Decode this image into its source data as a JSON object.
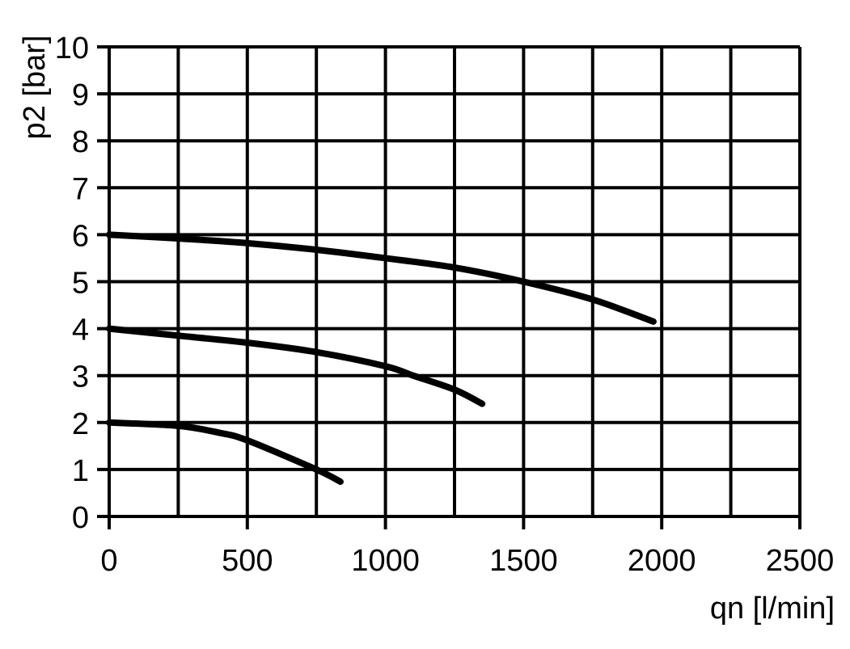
{
  "chart_data": {
    "type": "line",
    "title": "",
    "xlabel": "qn [l/min]",
    "ylabel": "p2 [bar]",
    "xlim": [
      0,
      2500
    ],
    "ylim": [
      0,
      10
    ],
    "xticks": [
      0,
      500,
      1000,
      1500,
      2000,
      2500
    ],
    "xtick_labels": [
      "0",
      "500",
      "1000",
      "1500",
      "2000",
      "2500"
    ],
    "x_grid_step": 250,
    "yticks": [
      0,
      1,
      2,
      3,
      4,
      5,
      6,
      7,
      8,
      9,
      10
    ],
    "ytick_labels": [
      "0",
      "1",
      "2",
      "3",
      "4",
      "5",
      "6",
      "7",
      "8",
      "9",
      "10"
    ],
    "grid": true,
    "line_color": "#000000",
    "series": [
      {
        "x": [
          0,
          250,
          500,
          750,
          1000,
          1250,
          1500,
          1750,
          1970
        ],
        "y": [
          6.0,
          5.92,
          5.82,
          5.68,
          5.5,
          5.3,
          5.0,
          4.62,
          4.15
        ]
      },
      {
        "x": [
          0,
          250,
          500,
          750,
          1000,
          1100,
          1250,
          1350
        ],
        "y": [
          4.0,
          3.85,
          3.7,
          3.5,
          3.2,
          3.0,
          2.7,
          2.4
        ]
      },
      {
        "x": [
          0,
          250,
          400,
          500,
          750,
          837
        ],
        "y": [
          2.0,
          1.93,
          1.78,
          1.62,
          1.0,
          0.74
        ]
      }
    ]
  }
}
